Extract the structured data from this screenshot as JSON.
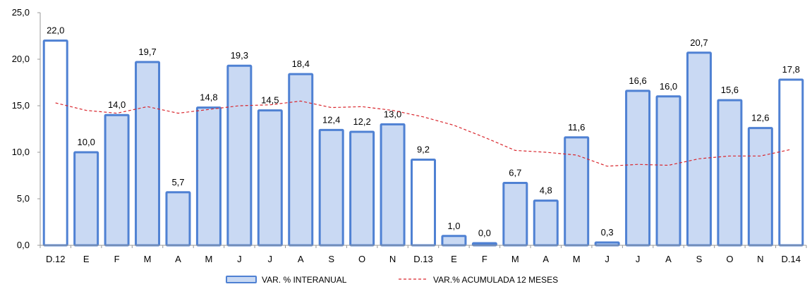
{
  "chart_data": {
    "type": "bar",
    "ylim": [
      0,
      25
    ],
    "y_ticks": [
      "0,0",
      "5,0",
      "10,0",
      "15,0",
      "20,0",
      "25,0"
    ],
    "y_tick_values": [
      0,
      5,
      10,
      15,
      20,
      25
    ],
    "categories": [
      "D.12",
      "E",
      "F",
      "M",
      "A",
      "M",
      "J",
      "J",
      "A",
      "S",
      "O",
      "N",
      "D.13",
      "E",
      "F",
      "M",
      "A",
      "M",
      "J",
      "J",
      "A",
      "S",
      "O",
      "N",
      "D.14"
    ],
    "highlight_categories": [
      "D.12",
      "D.13",
      "D.14"
    ],
    "series": [
      {
        "name": "VAR. % INTERANUAL",
        "type": "bar",
        "values": [
          22.0,
          10.0,
          14.0,
          19.7,
          5.7,
          14.8,
          19.3,
          14.5,
          18.4,
          12.4,
          12.2,
          13.0,
          9.2,
          1.0,
          0.0,
          6.7,
          4.8,
          11.6,
          0.3,
          16.6,
          16.0,
          20.7,
          15.6,
          12.6,
          17.8
        ],
        "labels": [
          "22,0",
          "10,0",
          "14,0",
          "19,7",
          "5,7",
          "14,8",
          "19,3",
          "14,5",
          "18,4",
          "12,4",
          "12,2",
          "13,0",
          "9,2",
          "1,0",
          "0,0",
          "6,7",
          "4,8",
          "11,6",
          "0,3",
          "16,6",
          "16,0",
          "20,7",
          "15,6",
          "12,6",
          "17,8"
        ]
      },
      {
        "name": "VAR.% ACUMULADA 12 MESES",
        "type": "line",
        "style": "dashed",
        "values": [
          15.3,
          14.5,
          14.2,
          14.9,
          14.2,
          14.6,
          15.0,
          15.1,
          15.5,
          14.8,
          14.9,
          14.5,
          13.8,
          12.9,
          11.6,
          10.2,
          10.0,
          9.7,
          8.5,
          8.7,
          8.6,
          9.3,
          9.6,
          9.6,
          10.3
        ]
      }
    ],
    "colors": {
      "bar_fill": "#c9d9f3",
      "bar_stroke": "#4f81d3",
      "highlight_fill": "#ffffff",
      "line": "#d9272e",
      "axis": "#999999"
    },
    "legend_position": "bottom",
    "grid": false
  }
}
